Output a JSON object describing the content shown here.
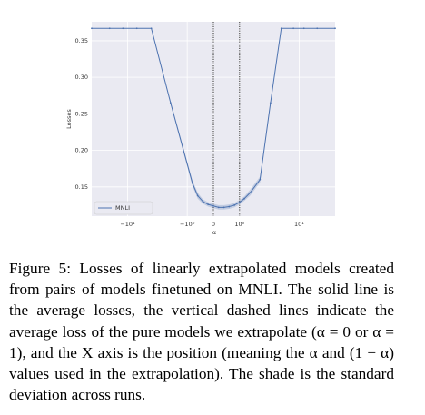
{
  "chart_data": {
    "type": "line",
    "xscale": "symlog",
    "x": [
      -40,
      -20,
      -12,
      -7,
      -4,
      -1.9,
      -0.8,
      -0.6,
      -0.4,
      -0.2,
      0,
      0.2,
      0.4,
      0.6,
      0.8,
      1,
      1.2,
      1.5,
      2.2,
      3.3,
      5,
      8,
      12,
      20,
      40
    ],
    "series": [
      {
        "name": "MNLI",
        "color": "#4c72b0",
        "values": [
          0.367,
          0.367,
          0.367,
          0.367,
          0.367,
          0.265,
          0.155,
          0.138,
          0.13,
          0.126,
          0.124,
          0.122,
          0.122,
          0.123,
          0.125,
          0.129,
          0.134,
          0.142,
          0.16,
          0.265,
          0.367,
          0.367,
          0.367,
          0.367,
          0.367
        ],
        "std": [
          0,
          0,
          0,
          0,
          0,
          0.002,
          0.004,
          0.004,
          0.003,
          0.003,
          0.003,
          0.003,
          0.003,
          0.003,
          0.003,
          0.003,
          0.003,
          0.004,
          0.004,
          0.002,
          0,
          0,
          0,
          0,
          0
        ]
      }
    ],
    "xlabel": "α",
    "ylabel": "Losses",
    "xlim": [
      -40,
      40
    ],
    "ylim": [
      0.11,
      0.376
    ],
    "xticks": [
      {
        "value": -10,
        "label": "−10¹"
      },
      {
        "value": -1,
        "label": "−10⁰"
      },
      0,
      {
        "value": 1,
        "label": "10⁰"
      },
      {
        "value": 10,
        "label": "10¹"
      }
    ],
    "yticks": [
      0.15,
      {
        "value": 0.2,
        "label": "0.20"
      },
      0.25,
      {
        "value": 0.3,
        "label": "0.30"
      },
      0.35
    ],
    "vlines": [
      0,
      1
    ],
    "grid": true,
    "legend": "lower left"
  },
  "caption": "Figure 5: Losses of linearly extrapolated models created from pairs of models finetuned on MNLI. The solid line is the average losses, the vertical dashed lines indicate the average loss of the pure models we extrapolate (α = 0 or α = 1), and the X axis is the position (meaning the α and (1 − α) values used in the extrapolation). The shade is the standard deviation across runs."
}
